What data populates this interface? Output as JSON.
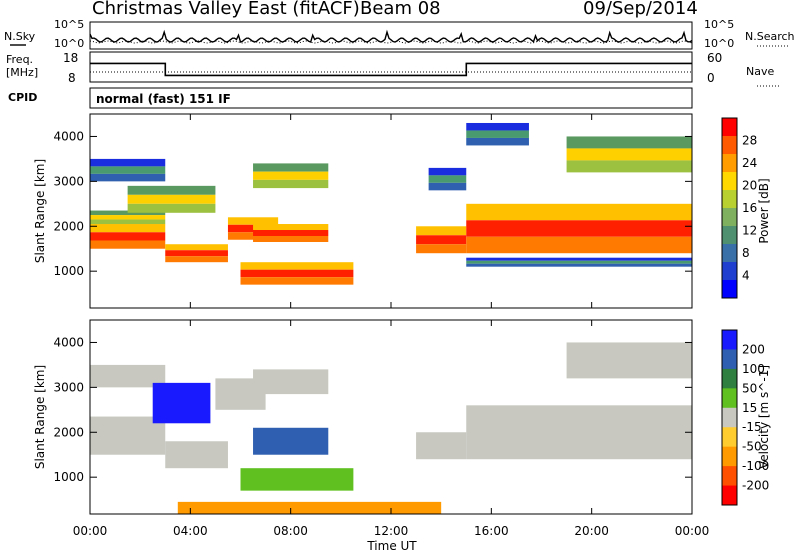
{
  "header": {
    "station": "Christmas Valley East (fitACF)",
    "beam": "Beam 08",
    "date": "09/Sep/2014"
  },
  "noise_panel": {
    "left_label": "N.Sky",
    "right_label": "N.Search",
    "left_ticks": [
      "10^5",
      "10^0"
    ],
    "right_ticks": [
      "10^5",
      "10^0"
    ]
  },
  "freq_panel": {
    "left_label_line1": "Freq.",
    "left_label_line2": "[MHz]",
    "right_label": "Nave",
    "left_ticks": [
      "18",
      "8"
    ],
    "right_ticks": [
      "60",
      "0"
    ]
  },
  "cpid": {
    "label": "CPID",
    "mode": "normal (fast) 151 IF"
  },
  "colorbar_power": {
    "label": "Power [dB]",
    "ticks": [
      "28",
      "24",
      "20",
      "16",
      "12",
      "8",
      "4"
    ],
    "colors": [
      "#ff0000",
      "#ff5a00",
      "#ff9c00",
      "#ffd800",
      "#b8d030",
      "#7fb060",
      "#4f9070",
      "#3a70a8",
      "#1f3fd0",
      "#0000ff"
    ]
  },
  "colorbar_velocity": {
    "label": "Velocity [m s^-1]",
    "ticks": [
      "200",
      "100",
      "50",
      "15",
      "-15",
      "-50",
      "-100",
      "-200"
    ],
    "colors": [
      "#1a1aff",
      "#2f5fb0",
      "#2f8040",
      "#60c020",
      "#c8c8c0",
      "#ffcc30",
      "#ff9a00",
      "#ff5000",
      "#ff0000"
    ]
  },
  "chart_data": {
    "type": "heatmap",
    "xlabel": "Time UT",
    "ylabel": "Slant Range [km]",
    "xticks": [
      "00:00",
      "04:00",
      "08:00",
      "12:00",
      "16:00",
      "20:00",
      "00:00"
    ],
    "yticks": [
      "1000",
      "2000",
      "3000",
      "4000"
    ],
    "xlim_hours": [
      0,
      24
    ],
    "ylim_km": [
      180,
      4500
    ],
    "freq_series": {
      "name": "Freq.",
      "x_hours": [
        0,
        3,
        3,
        15,
        15,
        24
      ],
      "y_mhz": [
        14.2,
        14.2,
        10.2,
        10.2,
        14.2,
        14.2
      ]
    },
    "power_regions": [
      {
        "t0": 0.0,
        "t1": 3.0,
        "r0": 1500,
        "r1": 2050,
        "level": "high"
      },
      {
        "t0": 0.0,
        "t1": 3.0,
        "r0": 2050,
        "r1": 2350,
        "level": "mid"
      },
      {
        "t0": 0.0,
        "t1": 3.0,
        "r0": 3000,
        "r1": 3500,
        "level": "low"
      },
      {
        "t0": 1.5,
        "t1": 5.0,
        "r0": 2300,
        "r1": 2900,
        "level": "mid"
      },
      {
        "t0": 3.0,
        "t1": 5.5,
        "r0": 1200,
        "r1": 1600,
        "level": "high"
      },
      {
        "t0": 5.5,
        "t1": 7.5,
        "r0": 1700,
        "r1": 2200,
        "level": "high"
      },
      {
        "t0": 6.0,
        "t1": 10.5,
        "r0": 700,
        "r1": 1200,
        "level": "high"
      },
      {
        "t0": 6.5,
        "t1": 9.5,
        "r0": 1650,
        "r1": 2050,
        "level": "high"
      },
      {
        "t0": 6.5,
        "t1": 9.5,
        "r0": 2850,
        "r1": 3400,
        "level": "mid"
      },
      {
        "t0": 13.0,
        "t1": 15.0,
        "r0": 1400,
        "r1": 2000,
        "level": "high"
      },
      {
        "t0": 13.5,
        "t1": 15.0,
        "r0": 2800,
        "r1": 3300,
        "level": "low"
      },
      {
        "t0": 15.0,
        "t1": 24.0,
        "r0": 1400,
        "r1": 2500,
        "level": "high"
      },
      {
        "t0": 15.0,
        "t1": 24.0,
        "r0": 1100,
        "r1": 1300,
        "level": "low"
      },
      {
        "t0": 15.0,
        "t1": 17.5,
        "r0": 3800,
        "r1": 4300,
        "level": "low"
      },
      {
        "t0": 19.0,
        "t1": 24.0,
        "r0": 3200,
        "r1": 4000,
        "level": "mid"
      }
    ],
    "velocity_regions": [
      {
        "t0": 0.0,
        "t1": 3.0,
        "r0": 1500,
        "r1": 2350,
        "sign": "gray"
      },
      {
        "t0": 0.0,
        "t1": 3.0,
        "r0": 3000,
        "r1": 3500,
        "sign": "gray"
      },
      {
        "t0": 2.5,
        "t1": 4.8,
        "r0": 2200,
        "r1": 3100,
        "sign": "positive-high"
      },
      {
        "t0": 3.0,
        "t1": 5.5,
        "r0": 1200,
        "r1": 1800,
        "sign": "gray"
      },
      {
        "t0": 5.0,
        "t1": 7.0,
        "r0": 2500,
        "r1": 3200,
        "sign": "gray"
      },
      {
        "t0": 6.0,
        "t1": 10.5,
        "r0": 700,
        "r1": 1200,
        "sign": "positive-low"
      },
      {
        "t0": 6.5,
        "t1": 9.5,
        "r0": 1500,
        "r1": 2100,
        "sign": "positive-mid"
      },
      {
        "t0": 6.5,
        "t1": 9.5,
        "r0": 2850,
        "r1": 3400,
        "sign": "gray"
      },
      {
        "t0": 3.5,
        "t1": 14.0,
        "r0": 180,
        "r1": 450,
        "sign": "negative"
      },
      {
        "t0": 13.0,
        "t1": 15.0,
        "r0": 1400,
        "r1": 2000,
        "sign": "gray"
      },
      {
        "t0": 15.0,
        "t1": 24.0,
        "r0": 1400,
        "r1": 2600,
        "sign": "gray"
      },
      {
        "t0": 19.0,
        "t1": 24.0,
        "r0": 3200,
        "r1": 4000,
        "sign": "gray"
      }
    ]
  }
}
